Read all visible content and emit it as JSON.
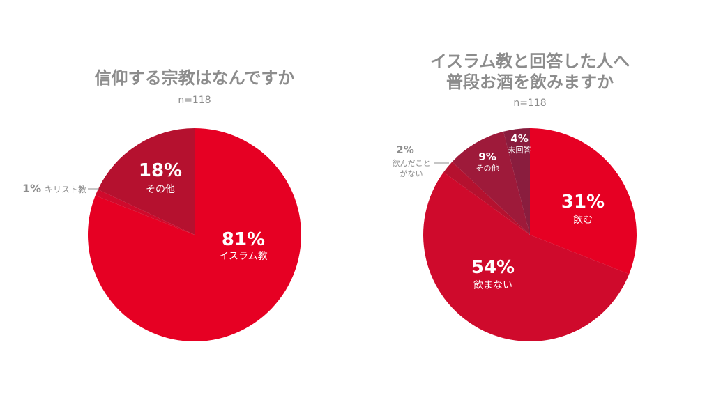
{
  "chart_data": [
    {
      "type": "pie",
      "title": "信仰する宗教はなんですか",
      "subtitle": "n=118",
      "slices": [
        {
          "pct_label": "81%",
          "label": "イスラム教",
          "value": 81,
          "color": "#e60023",
          "label_position": "inside"
        },
        {
          "pct_label": "1%",
          "label": "キリスト教",
          "value": 1,
          "color": "#cf0a2c",
          "label_position": "outside-left"
        },
        {
          "pct_label": "18%",
          "label": "その他",
          "value": 18,
          "color": "#b5112f",
          "label_position": "inside"
        }
      ]
    },
    {
      "type": "pie",
      "title_lines": [
        "イスラム教と回答した人へ",
        "普段お酒を飲みますか"
      ],
      "subtitle": "n=118",
      "slices": [
        {
          "pct_label": "31%",
          "label_lines": [
            "飲む"
          ],
          "value": 31,
          "color": "#e60023",
          "label_position": "inside"
        },
        {
          "pct_label": "54%",
          "label_lines": [
            "飲まない"
          ],
          "value": 54,
          "color": "#cf0a2c",
          "label_position": "inside"
        },
        {
          "pct_label": "2%",
          "label_lines": [
            "飲んだこと",
            "がない"
          ],
          "value": 2,
          "color": "#b5112f",
          "label_position": "outside-left"
        },
        {
          "pct_label": "9%",
          "label_lines": [
            "その他"
          ],
          "value": 9,
          "color": "#9e1a3a",
          "label_position": "inside"
        },
        {
          "pct_label": "4%",
          "label_lines": [
            "未回答"
          ],
          "value": 4,
          "color": "#8a1d3e",
          "label_position": "inside"
        }
      ]
    }
  ]
}
